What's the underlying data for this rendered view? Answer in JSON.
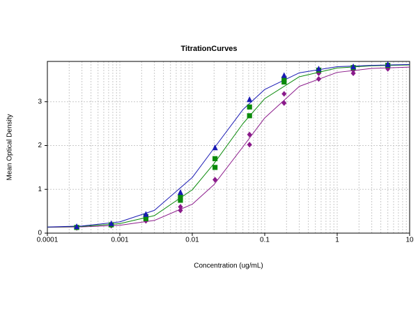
{
  "chart_data": {
    "type": "scatter",
    "title": "TitrationCurves",
    "x_label": "Concentration (ug/mL)",
    "y_label": "Mean Optical Density",
    "x_scale": "log",
    "xlim": [
      0.0001,
      10
    ],
    "xticks": [
      0.0001,
      0.001,
      0.01,
      0.1,
      1,
      10
    ],
    "xminorticks": [
      0.0002,
      0.0003,
      0.0004,
      0.0005,
      0.0006,
      0.0007,
      0.0008,
      0.0009,
      0.002,
      0.003,
      0.004,
      0.005,
      0.006,
      0.007,
      0.008,
      0.009,
      0.02,
      0.03,
      0.04,
      0.05,
      0.06,
      0.07,
      0.08,
      0.09,
      0.2,
      0.3,
      0.4,
      0.5,
      0.6,
      0.7,
      0.8,
      0.9,
      2,
      3,
      4,
      5,
      6,
      7,
      8,
      9
    ],
    "ylim": [
      0,
      3.92
    ],
    "yticks": [
      0,
      1,
      2,
      3
    ],
    "grid": true,
    "fit_x": [
      0.0001,
      0.0003,
      0.001,
      0.003,
      0.01,
      0.02,
      0.05,
      0.1,
      0.3,
      1,
      3,
      10
    ],
    "series": [
      {
        "color": "#8b1a8b",
        "marker": "diamond",
        "x": [
          0.000254,
          0.000762,
          0.00229,
          0.00686,
          0.00686,
          0.0206,
          0.0617,
          0.0617,
          0.185,
          0.185,
          0.556,
          0.556,
          1.667,
          1.667,
          5
        ],
        "values": [
          0.12,
          0.17,
          0.28,
          0.52,
          0.6,
          1.22,
          2.02,
          2.25,
          2.97,
          3.18,
          3.52,
          3.65,
          3.65,
          3.72,
          3.75
        ],
        "fit_values": [
          0.134,
          0.143,
          0.18,
          0.29,
          0.66,
          1.11,
          1.97,
          2.63,
          3.35,
          3.67,
          3.76,
          3.79
        ]
      },
      {
        "color": "#0a8a0a",
        "marker": "square",
        "x": [
          0.000254,
          0.000762,
          0.00229,
          0.00229,
          0.00686,
          0.00686,
          0.0206,
          0.0206,
          0.0617,
          0.0617,
          0.185,
          0.185,
          0.556,
          1.667,
          5
        ],
        "values": [
          0.13,
          0.19,
          0.33,
          0.38,
          0.75,
          0.82,
          1.5,
          1.7,
          2.68,
          2.88,
          3.45,
          3.52,
          3.72,
          3.78,
          3.83
        ],
        "fit_values": [
          0.137,
          0.153,
          0.217,
          0.4,
          0.99,
          1.59,
          2.5,
          3.07,
          3.57,
          3.77,
          3.82,
          3.84
        ]
      },
      {
        "color": "#1a1ab4",
        "marker": "triangle",
        "x": [
          0.000254,
          0.000762,
          0.00229,
          0.00686,
          0.0206,
          0.0617,
          0.185,
          0.556,
          1.667,
          5
        ],
        "values": [
          0.15,
          0.22,
          0.43,
          0.93,
          1.95,
          3.05,
          3.6,
          3.75,
          3.8,
          3.85
        ],
        "fit_values": [
          0.14,
          0.164,
          0.257,
          0.52,
          1.27,
          1.94,
          2.82,
          3.28,
          3.66,
          3.8,
          3.83,
          3.85
        ]
      }
    ]
  }
}
